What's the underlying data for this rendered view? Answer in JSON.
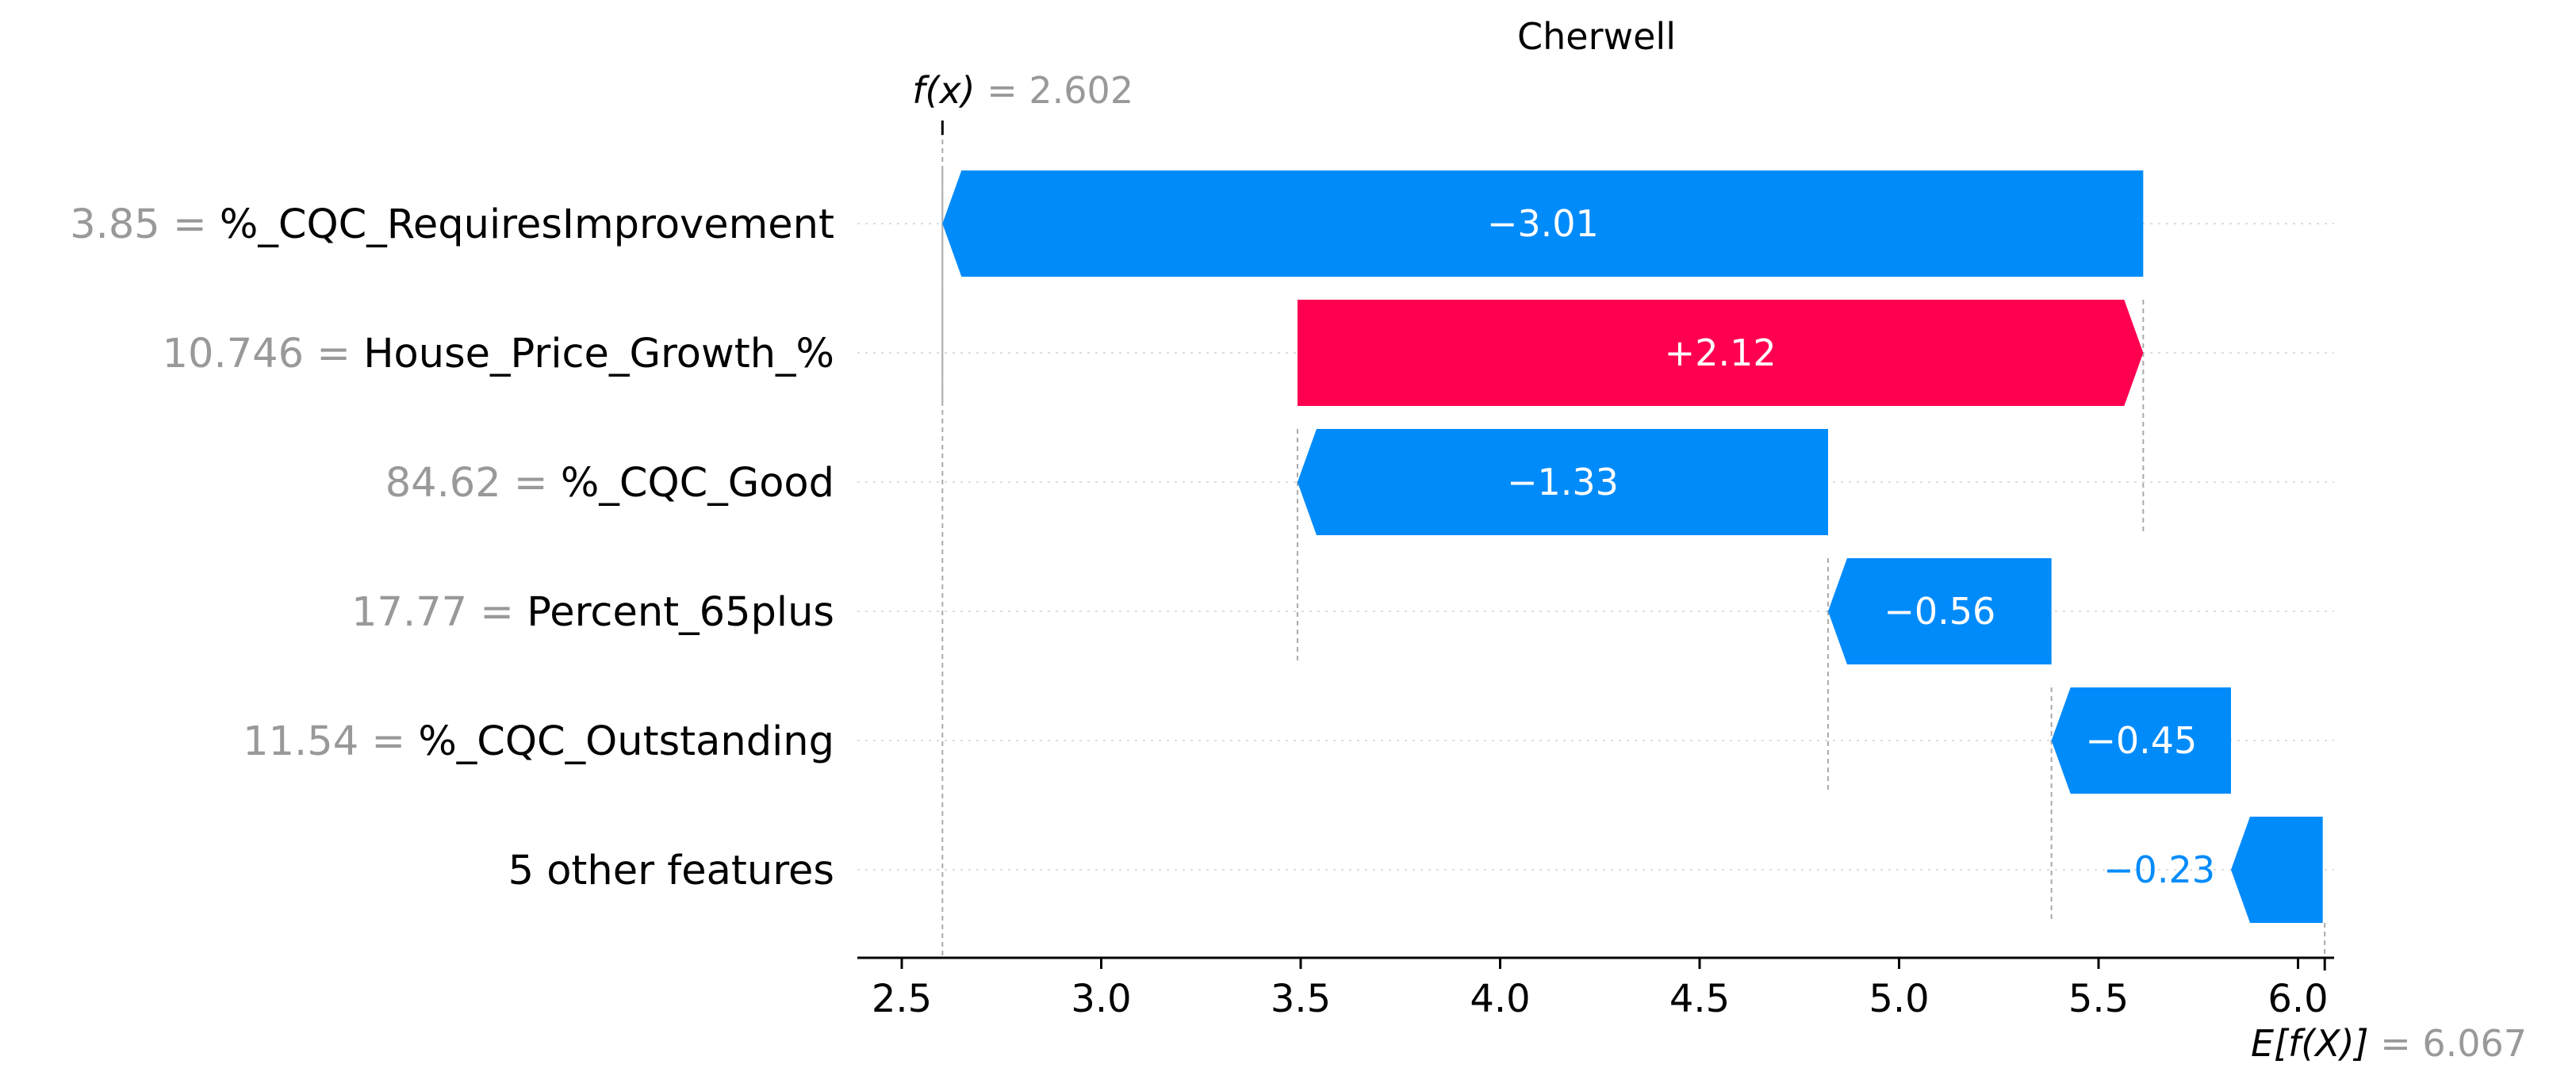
{
  "chart_data": {
    "type": "waterfall",
    "title": "Cherwell",
    "fx": {
      "label": "f(x)",
      "value": "2.602",
      "numeric": 2.602
    },
    "ex": {
      "label": "E[f(X)]",
      "value": "6.067",
      "numeric": 6.067
    },
    "xlim": [
      2.4,
      6.05
    ],
    "xticks": [
      {
        "value": 2.5,
        "label": "2.5"
      },
      {
        "value": 3.0,
        "label": "3.0"
      },
      {
        "value": 3.5,
        "label": "3.5"
      },
      {
        "value": 4.0,
        "label": "4.0"
      },
      {
        "value": 4.5,
        "label": "4.5"
      },
      {
        "value": 5.0,
        "label": "5.0"
      },
      {
        "value": 5.5,
        "label": "5.5"
      },
      {
        "value": 6.0,
        "label": "6.0"
      }
    ],
    "features": [
      {
        "value_text": "3.85",
        "name": "%_CQC_RequiresImprovement",
        "shap": -3.01,
        "shap_label": "−3.01",
        "start": 5.612,
        "end": 2.602
      },
      {
        "value_text": "10.746",
        "name": "House_Price_Growth_%",
        "shap": 2.12,
        "shap_label": "+2.12",
        "start": 3.492,
        "end": 5.612
      },
      {
        "value_text": "84.62",
        "name": "%_CQC_Good",
        "shap": -1.33,
        "shap_label": "−1.33",
        "start": 4.822,
        "end": 3.492
      },
      {
        "value_text": "17.77",
        "name": "Percent_65plus",
        "shap": -0.56,
        "shap_label": "−0.56",
        "start": 5.382,
        "end": 4.822
      },
      {
        "value_text": "11.54",
        "name": "%_CQC_Outstanding",
        "shap": -0.45,
        "shap_label": "−0.45",
        "start": 5.832,
        "end": 5.382
      },
      {
        "value_text": "",
        "name": "5 other features",
        "shap": -0.23,
        "shap_label": "−0.23",
        "start": 6.062,
        "end": 5.832
      }
    ],
    "colors": {
      "positive": "#ff0051",
      "negative": "#008bfb",
      "text_gray": "#999999"
    },
    "grid": "dotted horizontal per row"
  }
}
